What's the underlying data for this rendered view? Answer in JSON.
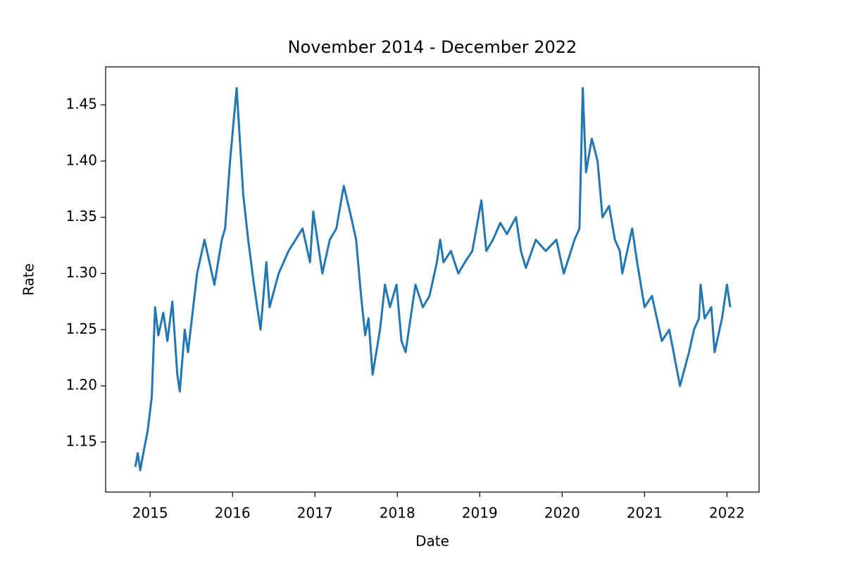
{
  "chart_data": {
    "type": "line",
    "title": "November 2014 - December 2022",
    "xlabel": "Date",
    "ylabel": "Rate",
    "color": "#1f77b4",
    "x": [
      2014.82,
      2014.85,
      2014.88,
      2014.93,
      2014.97,
      2015.02,
      2015.06,
      2015.1,
      2015.16,
      2015.21,
      2015.27,
      2015.33,
      2015.36,
      2015.42,
      2015.46,
      2015.57,
      2015.66,
      2015.78,
      2015.87,
      2015.91,
      2015.97,
      2016.05,
      2016.13,
      2016.19,
      2016.26,
      2016.34,
      2016.41,
      2016.45,
      2016.56,
      2016.68,
      2016.85,
      2016.94,
      2016.98,
      2017.09,
      2017.18,
      2017.26,
      2017.35,
      2017.44,
      2017.5,
      2017.56,
      2017.61,
      2017.65,
      2017.7,
      2017.79,
      2017.85,
      2017.91,
      2017.99,
      2018.05,
      2018.1,
      2018.22,
      2018.31,
      2018.39,
      2018.48,
      2018.52,
      2018.56,
      2018.65,
      2018.74,
      2018.82,
      2018.91,
      2019.02,
      2019.08,
      2019.16,
      2019.25,
      2019.33,
      2019.44,
      2019.5,
      2019.56,
      2019.68,
      2019.8,
      2019.93,
      2020.02,
      2020.15,
      2020.21,
      2020.25,
      2020.29,
      2020.36,
      2020.43,
      2020.49,
      2020.57,
      2020.64,
      2020.7,
      2020.73,
      2020.85,
      2020.91,
      2021.0,
      2021.09,
      2021.21,
      2021.3,
      2021.43,
      2021.54,
      2021.6,
      2021.66,
      2021.68,
      2021.73,
      2021.81,
      2021.85,
      2021.94,
      2022.0,
      2022.04
    ],
    "values": [
      1.128,
      1.14,
      1.125,
      1.145,
      1.16,
      1.19,
      1.27,
      1.245,
      1.265,
      1.24,
      1.275,
      1.21,
      1.195,
      1.25,
      1.23,
      1.3,
      1.33,
      1.29,
      1.33,
      1.34,
      1.4,
      1.465,
      1.37,
      1.33,
      1.29,
      1.25,
      1.31,
      1.27,
      1.3,
      1.32,
      1.34,
      1.31,
      1.355,
      1.3,
      1.33,
      1.34,
      1.378,
      1.35,
      1.33,
      1.28,
      1.245,
      1.26,
      1.21,
      1.25,
      1.29,
      1.27,
      1.29,
      1.24,
      1.23,
      1.29,
      1.27,
      1.28,
      1.31,
      1.33,
      1.31,
      1.32,
      1.3,
      1.31,
      1.32,
      1.365,
      1.32,
      1.33,
      1.345,
      1.335,
      1.35,
      1.32,
      1.305,
      1.33,
      1.32,
      1.33,
      1.3,
      1.33,
      1.34,
      1.465,
      1.39,
      1.42,
      1.4,
      1.35,
      1.36,
      1.33,
      1.32,
      1.3,
      1.34,
      1.31,
      1.27,
      1.28,
      1.24,
      1.25,
      1.2,
      1.23,
      1.25,
      1.26,
      1.29,
      1.26,
      1.27,
      1.23,
      1.26,
      1.29,
      1.27
    ],
    "xlim": [
      2014.46,
      2022.39
    ],
    "xticks": [
      2015,
      2016,
      2017,
      2018,
      2019,
      2020,
      2021,
      2022
    ],
    "ylim": [
      1.1055,
      1.4838
    ],
    "yticks": [
      1.15,
      {
        "value": 1.2,
        "label": "1.20"
      },
      1.25,
      {
        "value": 1.3,
        "label": "1.30"
      },
      1.35,
      {
        "value": 1.4,
        "label": "1.40"
      },
      1.45
    ]
  }
}
